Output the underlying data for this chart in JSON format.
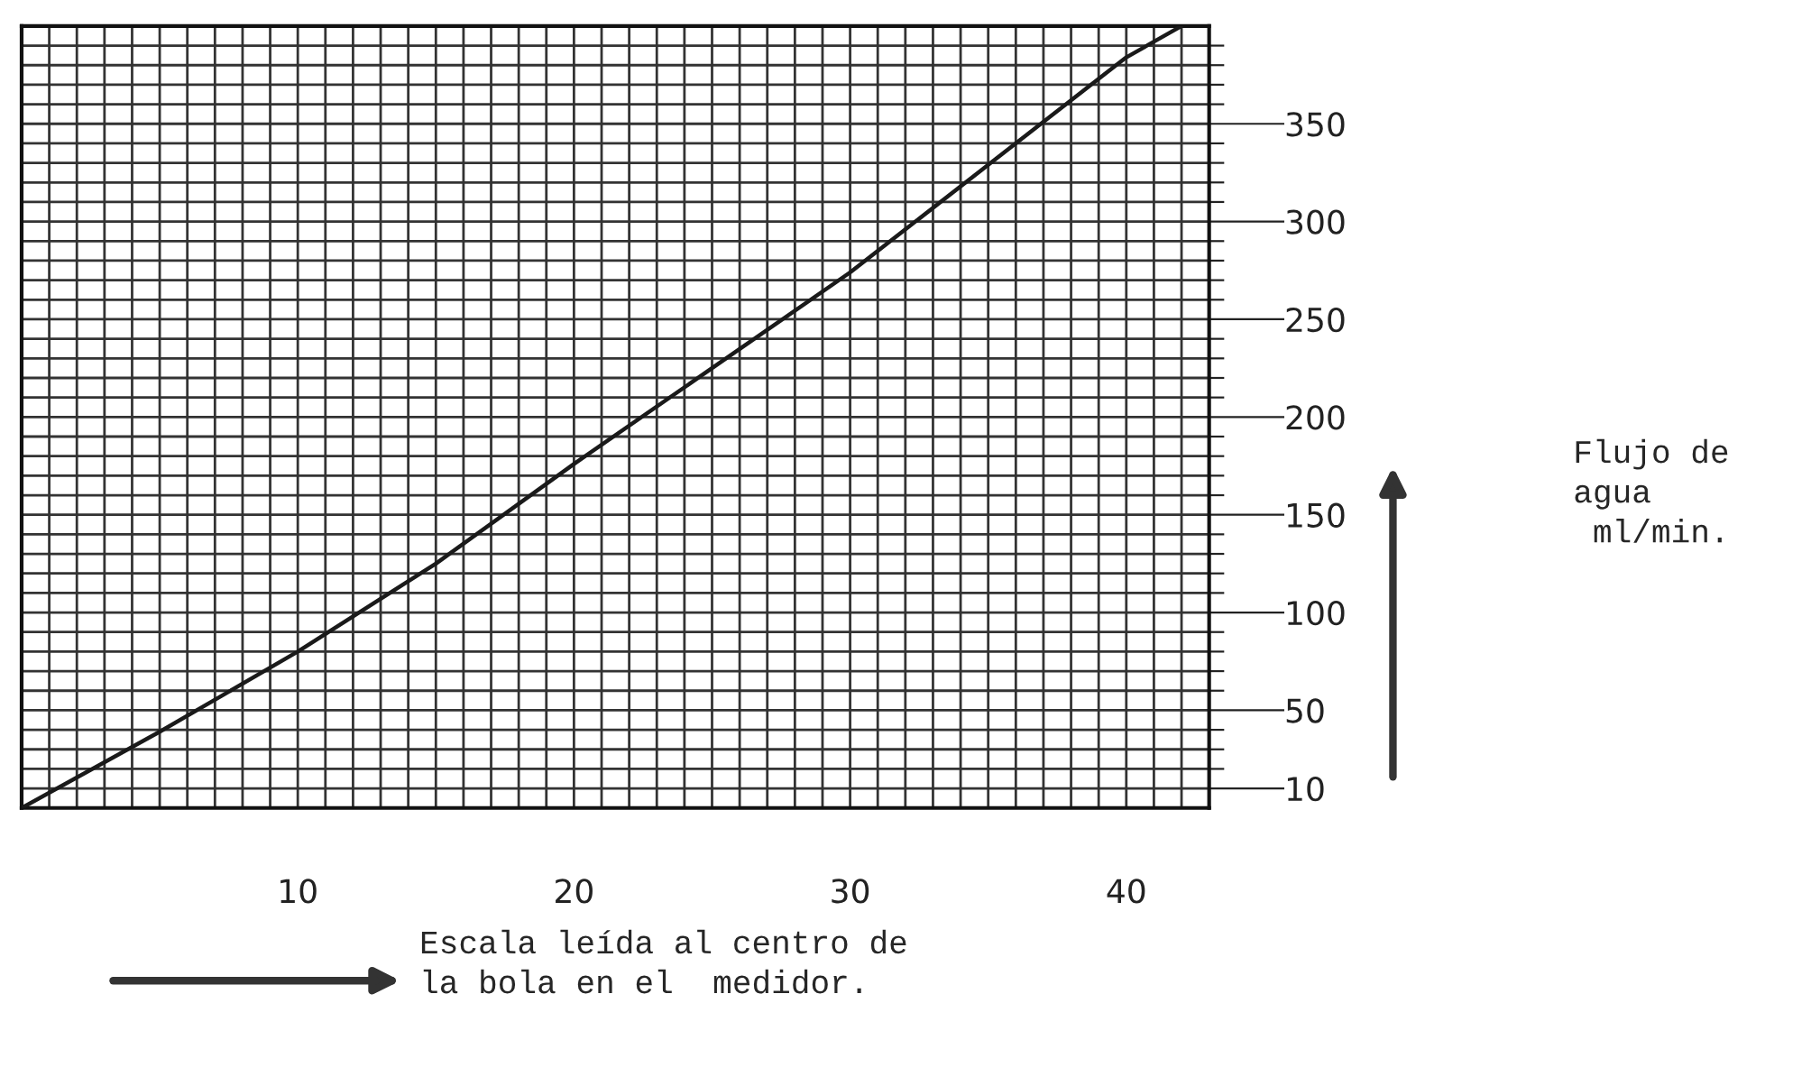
{
  "chart_data": {
    "type": "line",
    "xlabel": "Escala leída al centro de\nla bola en el  medidor.",
    "annotations": [
      "Flujo de\nagua\n ml/min."
    ],
    "x": [
      0,
      5,
      10,
      15,
      20,
      25,
      30,
      35,
      40,
      42
    ],
    "series": [
      {
        "color": "#1a1a1a",
        "values": [
          0,
          39,
          80,
          125,
          176,
          225,
          274,
          329,
          384,
          400
        ]
      }
    ],
    "xlim": [
      0,
      43
    ],
    "ylim": [
      0,
      400
    ],
    "xticks": [
      {
        "value": 1,
        "label": null
      },
      {
        "value": 2,
        "label": null
      },
      {
        "value": 3,
        "label": null
      },
      {
        "value": 4,
        "label": null
      },
      {
        "value": 5,
        "label": null
      },
      {
        "value": 6,
        "label": null
      },
      {
        "value": 7,
        "label": null
      },
      {
        "value": 8,
        "label": null
      },
      {
        "value": 9,
        "label": null
      },
      10,
      {
        "value": 11,
        "label": null
      },
      {
        "value": 12,
        "label": null
      },
      {
        "value": 13,
        "label": null
      },
      {
        "value": 14,
        "label": null
      },
      {
        "value": 15,
        "label": null
      },
      {
        "value": 16,
        "label": null
      },
      {
        "value": 17,
        "label": null
      },
      {
        "value": 18,
        "label": null
      },
      {
        "value": 19,
        "label": null
      },
      20,
      {
        "value": 21,
        "label": null
      },
      {
        "value": 22,
        "label": null
      },
      {
        "value": 23,
        "label": null
      },
      {
        "value": 24,
        "label": null
      },
      {
        "value": 25,
        "label": null
      },
      {
        "value": 26,
        "label": null
      },
      {
        "value": 27,
        "label": null
      },
      {
        "value": 28,
        "label": null
      },
      {
        "value": 29,
        "label": null
      },
      30,
      {
        "value": 31,
        "label": null
      },
      {
        "value": 32,
        "label": null
      },
      {
        "value": 33,
        "label": null
      },
      {
        "value": 34,
        "label": null
      },
      {
        "value": 35,
        "label": null
      },
      {
        "value": 36,
        "label": null
      },
      {
        "value": 37,
        "label": null
      },
      {
        "value": 38,
        "label": null
      },
      {
        "value": 39,
        "label": null
      },
      40,
      {
        "value": 41,
        "label": null
      },
      {
        "value": 42,
        "label": null
      }
    ],
    "yticks": [
      10,
      {
        "value": 20,
        "label": null
      },
      {
        "value": 30,
        "label": null
      },
      {
        "value": 40,
        "label": null
      },
      50,
      {
        "value": 60,
        "label": null
      },
      {
        "value": 70,
        "label": null
      },
      {
        "value": 80,
        "label": null
      },
      {
        "value": 90,
        "label": null
      },
      100,
      {
        "value": 110,
        "label": null
      },
      {
        "value": 120,
        "label": null
      },
      {
        "value": 130,
        "label": null
      },
      {
        "value": 140,
        "label": null
      },
      150,
      {
        "value": 160,
        "label": null
      },
      {
        "value": 170,
        "label": null
      },
      {
        "value": 180,
        "label": null
      },
      {
        "value": 190,
        "label": null
      },
      200,
      {
        "value": 210,
        "label": null
      },
      {
        "value": 220,
        "label": null
      },
      {
        "value": 230,
        "label": null
      },
      {
        "value": 240,
        "label": null
      },
      250,
      {
        "value": 260,
        "label": null
      },
      {
        "value": 270,
        "label": null
      },
      {
        "value": 280,
        "label": null
      },
      {
        "value": 290,
        "label": null
      },
      300,
      {
        "value": 310,
        "label": null
      },
      {
        "value": 320,
        "label": null
      },
      {
        "value": 330,
        "label": null
      },
      {
        "value": 340,
        "label": null
      },
      350,
      {
        "value": 360,
        "label": null
      },
      {
        "value": 370,
        "label": null
      },
      {
        "value": 380,
        "label": null
      },
      {
        "value": 390,
        "label": null
      }
    ],
    "grid": true,
    "marker": "none",
    "line_style": "solid"
  }
}
